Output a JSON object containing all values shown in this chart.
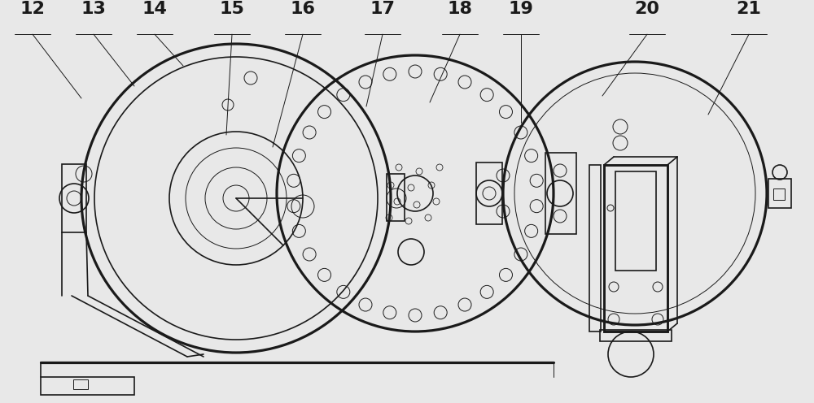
{
  "bg_color": "#e8e8e8",
  "line_color": "#1a1a1a",
  "lw_main": 1.8,
  "lw_med": 1.2,
  "lw_thin": 0.7,
  "labels": [
    "12",
    "13",
    "14",
    "15",
    "16",
    "17",
    "18",
    "19",
    "20",
    "21"
  ],
  "label_fx": [
    0.04,
    0.115,
    0.19,
    0.285,
    0.372,
    0.47,
    0.565,
    0.64,
    0.795,
    0.92
  ],
  "label_fy": 0.958,
  "figsize": [
    10.0,
    4.96
  ],
  "dpi": 100,
  "note_fontsize": 16
}
